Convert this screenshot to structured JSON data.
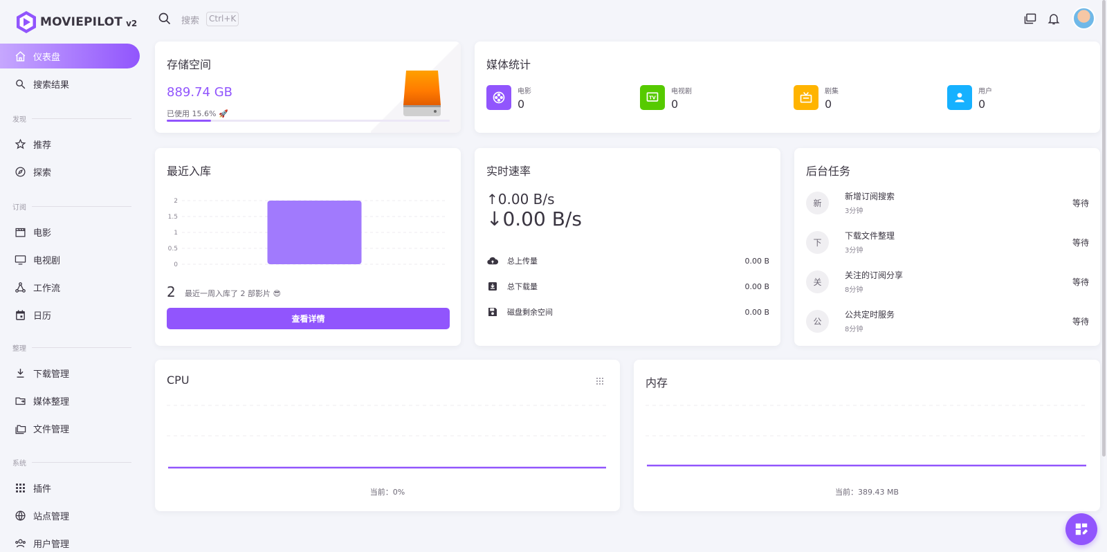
{
  "app": {
    "name": "MOVIEPILOT",
    "version": "v2"
  },
  "colors": {
    "accent": "#9155fd",
    "green": "#56ca00",
    "amber": "#ffb400",
    "blue": "#16b1ff"
  },
  "search": {
    "placeholder": "搜索",
    "shortcut": "Ctrl+K"
  },
  "sidebar": {
    "top": [
      {
        "label": "仪表盘",
        "icon": "home-icon",
        "active": true
      },
      {
        "label": "搜索结果",
        "icon": "search-icon"
      }
    ],
    "sections": [
      {
        "title": "发现",
        "items": [
          {
            "label": "推荐",
            "icon": "star-icon"
          },
          {
            "label": "探索",
            "icon": "compass-icon"
          }
        ]
      },
      {
        "title": "订阅",
        "items": [
          {
            "label": "电影",
            "icon": "clapper-icon"
          },
          {
            "label": "电视剧",
            "icon": "monitor-icon"
          },
          {
            "label": "工作流",
            "icon": "workflow-icon"
          },
          {
            "label": "日历",
            "icon": "calendar-icon"
          }
        ]
      },
      {
        "title": "整理",
        "items": [
          {
            "label": "下载管理",
            "icon": "download-icon"
          },
          {
            "label": "媒体整理",
            "icon": "folder-move-icon"
          },
          {
            "label": "文件管理",
            "icon": "files-icon"
          }
        ]
      },
      {
        "title": "系统",
        "items": [
          {
            "label": "插件",
            "icon": "grid-icon"
          },
          {
            "label": "站点管理",
            "icon": "globe-icon"
          },
          {
            "label": "用户管理",
            "icon": "users-icon"
          }
        ]
      }
    ]
  },
  "storage": {
    "title": "存储空间",
    "value": "889.74 GB",
    "used_label": "已使用 15.6%",
    "used_fraction": 0.156
  },
  "media": {
    "title": "媒体统计",
    "stats": [
      {
        "label": "电影",
        "value": "0",
        "icon": "film-reel-icon"
      },
      {
        "label": "电视剧",
        "value": "0",
        "icon": "tv-icon"
      },
      {
        "label": "剧集",
        "value": "0",
        "icon": "retro-tv-icon"
      },
      {
        "label": "用户",
        "value": "0",
        "icon": "user-icon"
      }
    ]
  },
  "recent": {
    "title": "最近入库",
    "count": "2",
    "desc": "最近一周入库了 2 部影片 😎",
    "button": "查看详情",
    "chart_data": {
      "type": "bar",
      "categories": [
        ""
      ],
      "values": [
        2
      ],
      "ylim": [
        0,
        2
      ],
      "yticks": [
        "0",
        "0.5",
        "1",
        "1.5",
        "2"
      ]
    }
  },
  "speed": {
    "title": "实时速率",
    "up": "↑0.00 B/s",
    "down": "↓0.00 B/s",
    "rows": [
      {
        "label": "总上传量",
        "value": "0.00 B",
        "icon": "cloud-upload-icon"
      },
      {
        "label": "总下载量",
        "value": "0.00 B",
        "icon": "download-box-icon"
      },
      {
        "label": "磁盘剩余空间",
        "value": "0.00 B",
        "icon": "save-icon"
      }
    ]
  },
  "tasks": {
    "title": "后台任务",
    "items": [
      {
        "avatar": "新",
        "name": "新增订阅搜索",
        "time": "3分钟",
        "status": "等待"
      },
      {
        "avatar": "下",
        "name": "下载文件整理",
        "time": "3分钟",
        "status": "等待"
      },
      {
        "avatar": "关",
        "name": "关注的订阅分享",
        "time": "8分钟",
        "status": "等待"
      },
      {
        "avatar": "公",
        "name": "公共定时服务",
        "time": "8分钟",
        "status": "等待"
      }
    ]
  },
  "cpu": {
    "title": "CPU",
    "current": "当前：0%",
    "chart_data": {
      "type": "line",
      "values": [
        0,
        0,
        0,
        0,
        0,
        0,
        0,
        0,
        0,
        0
      ]
    }
  },
  "memory": {
    "title": "内存",
    "current": "当前：389.43 MB",
    "chart_data": {
      "type": "line",
      "values": [
        389.43,
        389.43,
        389.43,
        389.43,
        389.43,
        389.43,
        389.43,
        389.43,
        389.43,
        389.43
      ]
    }
  }
}
